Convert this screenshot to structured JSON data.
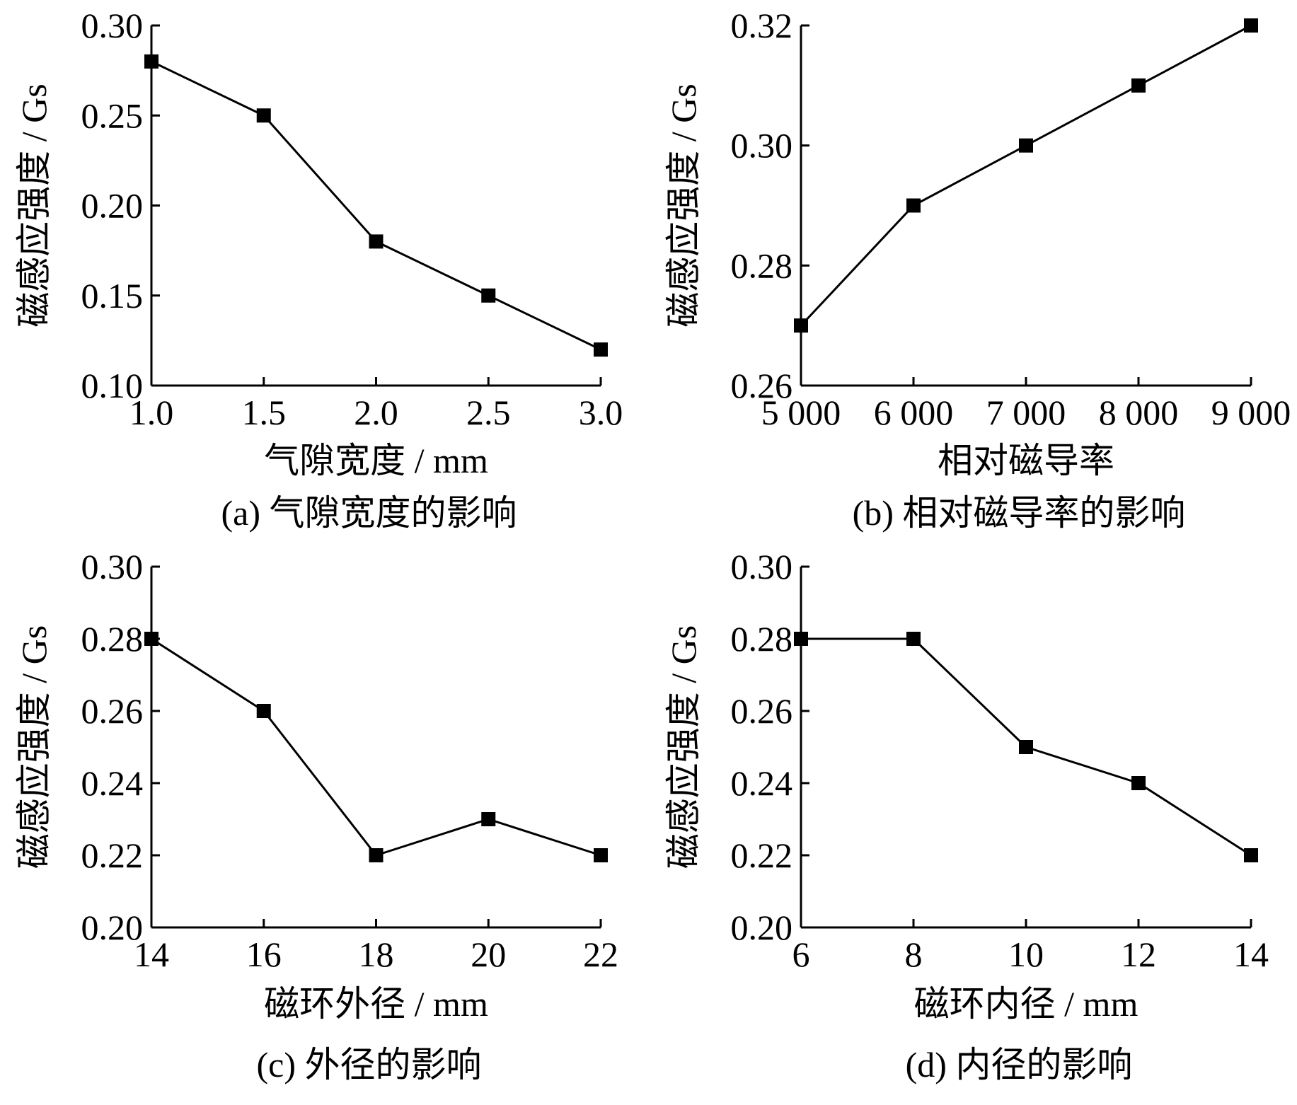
{
  "chart_data": [
    {
      "type": "line",
      "xlabel": "气隙宽度 / mm",
      "ylabel": "磁感应强度 / Gs",
      "caption": "(a)  气隙宽度的影响",
      "x": [
        1.0,
        1.5,
        2.0,
        2.5,
        3.0
      ],
      "series": [
        {
          "values": [
            0.28,
            0.25,
            0.18,
            0.15,
            0.12
          ]
        }
      ],
      "xlim": [
        1.0,
        3.0
      ],
      "ylim": [
        0.1,
        0.3
      ],
      "xticks": [
        "1.0",
        "1.5",
        "2.0",
        "2.5",
        "3.0"
      ],
      "yticks": [
        "0.10",
        "0.15",
        "0.20",
        "0.25",
        "0.30"
      ],
      "marker": "square",
      "grid": false
    },
    {
      "type": "line",
      "xlabel": "相对磁导率",
      "ylabel": "磁感应强度 / Gs",
      "caption": "(b)  相对磁导率的影响",
      "x": [
        5000,
        6000,
        7000,
        8000,
        9000
      ],
      "series": [
        {
          "values": [
            0.27,
            0.29,
            0.3,
            0.31,
            0.32
          ]
        }
      ],
      "xlim": [
        5000,
        9000
      ],
      "ylim": [
        0.26,
        0.32
      ],
      "xticks": [
        "5 000",
        "6 000",
        "7 000",
        "8 000",
        "9 000"
      ],
      "yticks": [
        "0.26",
        "0.28",
        "0.30",
        "0.32"
      ],
      "marker": "square",
      "grid": false
    },
    {
      "type": "line",
      "xlabel": "磁环外径 / mm",
      "ylabel": "磁感应强度 / Gs",
      "caption": "(c)  外径的影响",
      "x": [
        14,
        16,
        18,
        20,
        22
      ],
      "series": [
        {
          "values": [
            0.28,
            0.26,
            0.22,
            0.23,
            0.22
          ]
        }
      ],
      "xlim": [
        14,
        22
      ],
      "ylim": [
        0.2,
        0.3
      ],
      "xticks": [
        "14",
        "16",
        "18",
        "20",
        "22"
      ],
      "yticks": [
        "0.20",
        "0.22",
        "0.24",
        "0.26",
        "0.28",
        "0.30"
      ],
      "marker": "square",
      "grid": false
    },
    {
      "type": "line",
      "xlabel": "磁环内径 / mm",
      "ylabel": "磁感应强度 / Gs",
      "caption": "(d)  内径的影响",
      "x": [
        6,
        8,
        10,
        12,
        14
      ],
      "series": [
        {
          "values": [
            0.28,
            0.28,
            0.25,
            0.24,
            0.22
          ]
        }
      ],
      "xlim": [
        6,
        14
      ],
      "ylim": [
        0.2,
        0.3
      ],
      "xticks": [
        "6",
        "8",
        "10",
        "12",
        "14"
      ],
      "yticks": [
        "0.20",
        "0.22",
        "0.24",
        "0.26",
        "0.28",
        "0.30"
      ],
      "marker": "square",
      "grid": false
    }
  ]
}
